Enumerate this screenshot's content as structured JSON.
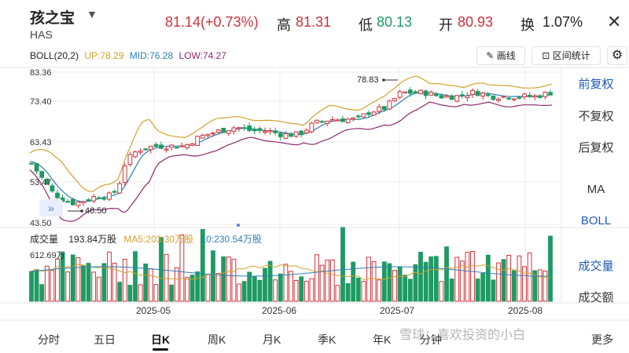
{
  "header": {
    "name": "孩之宝",
    "ticker": "HAS",
    "price_change": "81.14(+0.73%)",
    "high_label": "高",
    "high_value": "81.31",
    "low_label": "低",
    "low_value": "80.13",
    "open_label": "开",
    "open_value": "80.93",
    "turnover_label": "换",
    "turnover_value": "1.07%"
  },
  "boll": {
    "title": "BOLL(20,2)",
    "up": "UP:78.29",
    "mid": "MID:76.28",
    "low": "LOW:74.27",
    "up_color": "#d3a12e",
    "mid_color": "#2f7fb5",
    "low_color": "#8b2a6b"
  },
  "tools": {
    "draw": "画线",
    "stats": "区间统计"
  },
  "price_axis": [
    "83.36",
    "73.40",
    "63.43",
    "53.47",
    "43.50"
  ],
  "annotations": {
    "high": "78.83",
    "low": "48.50"
  },
  "side_menu": {
    "items": [
      "前复权",
      "不复权",
      "后复权",
      "MA",
      "BOLL",
      "成交量",
      "成交额"
    ],
    "active": [
      "前复权",
      "BOLL",
      "成交量"
    ]
  },
  "volume": {
    "title": "成交量",
    "value": "193.84万股",
    "ma5": "MA5:203.30万股",
    "ma10": "10:230.54万股",
    "max_label": "612.69万"
  },
  "date_axis": [
    "2025-05",
    "2025-06",
    "2025-07",
    "2025-08"
  ],
  "tabs": [
    "分时",
    "五日",
    "日K",
    "周K",
    "月K",
    "季K",
    "年K",
    "分钟",
    "更多"
  ],
  "active_tab": "日K",
  "watermark": "雪球：喜欢投资的小白",
  "colors": {
    "up": "#d0323a",
    "down": "#1f9a63",
    "accent": "#1e5bb5"
  }
}
